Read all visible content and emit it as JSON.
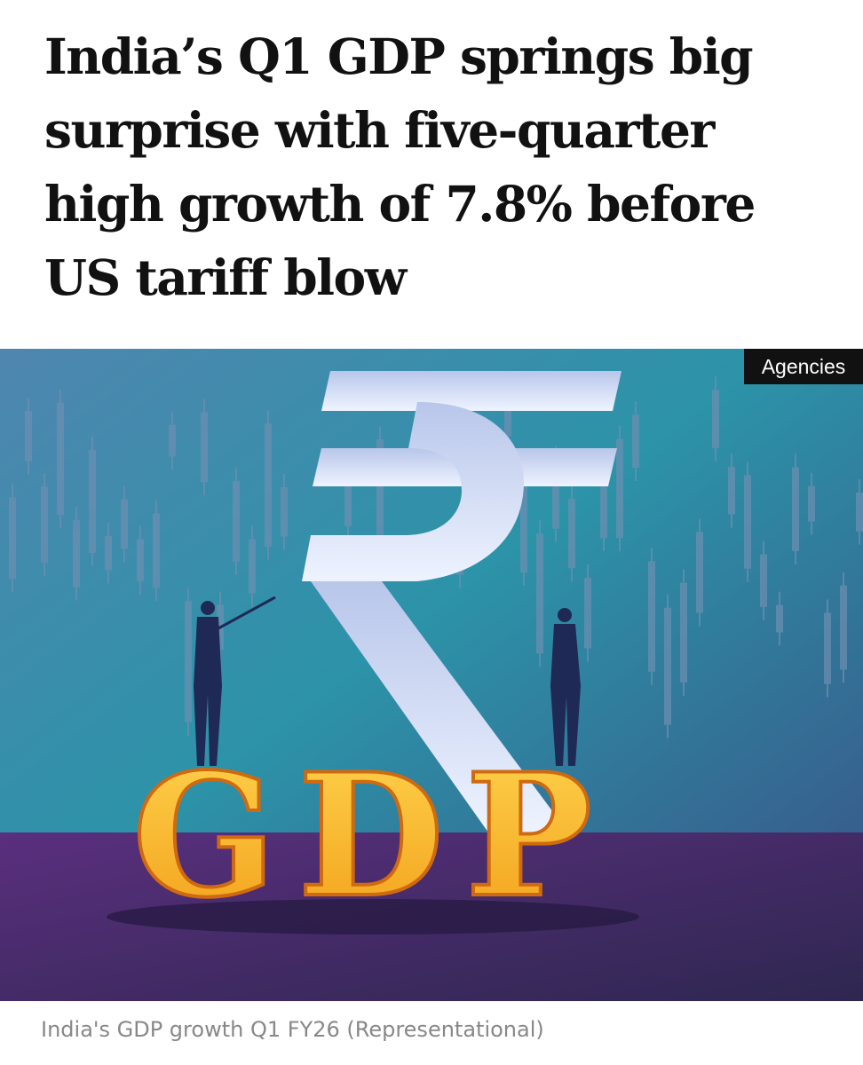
{
  "headline_lines": [
    "India’s Q1 GDP springs big",
    "surprise with five-quarter",
    "high growth of 7.8% before",
    "US tariff blow"
  ],
  "image": {
    "credit": "Agencies",
    "label": "GDP"
  },
  "caption": "India's GDP growth Q1 FY26 (Representational)"
}
